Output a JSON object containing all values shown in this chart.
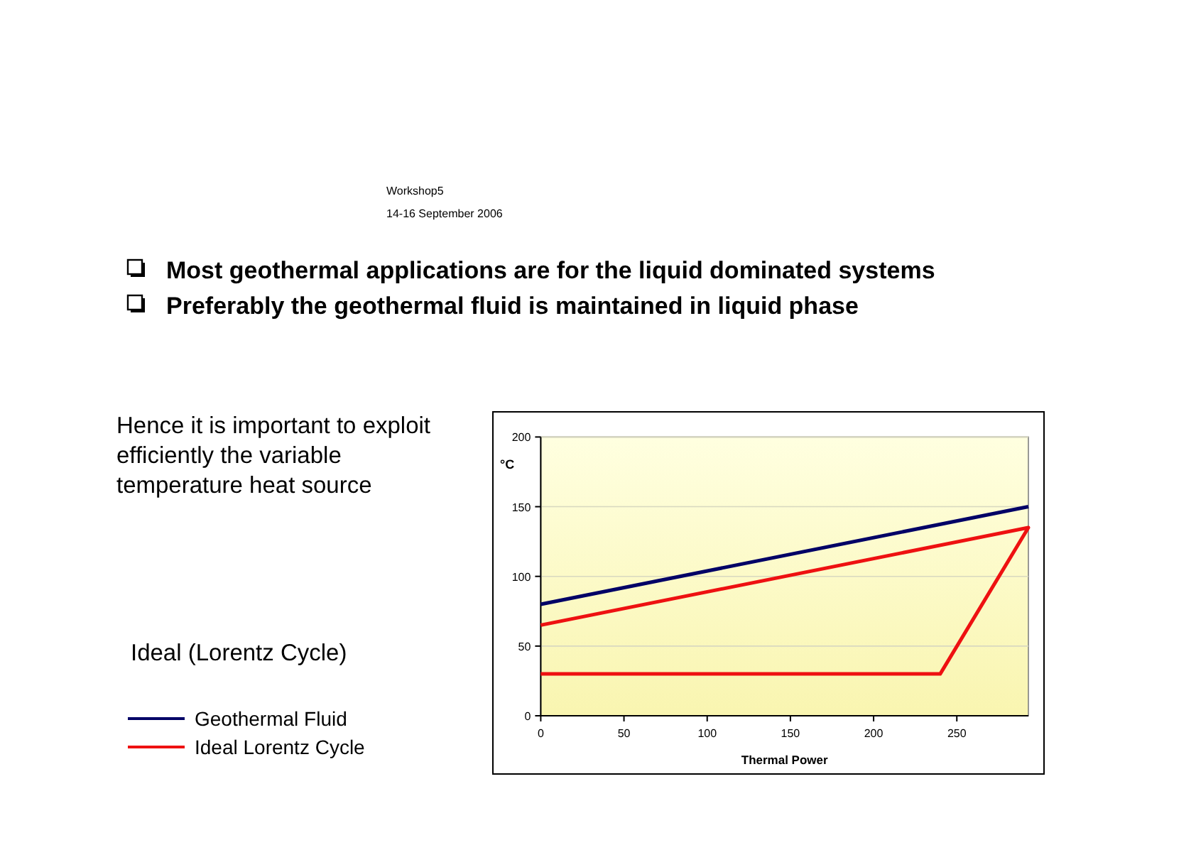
{
  "chart_data": {
    "type": "line",
    "title": "Most geothermal applications are for the liquid dominated systems",
    "subtitle": "Preferably the geothermal fluid is maintained in liquid phase",
    "annotations": [
      "Hence it is important to exploit efficiently the variable temperature heat source",
      "Workshop5",
      "14-16 September 2006"
    ],
    "xlabel": "Thermal Power",
    "ylabel": "°C",
    "legend_title": "Ideal (Lorentz Cycle)",
    "series": [
      {
        "name": "Geothermal Fluid",
        "color": "#000066",
        "x": [
          0,
          293
        ],
        "values": [
          80,
          150
        ]
      },
      {
        "name": "Ideal Lorentz Cycle",
        "color": "#ee1111",
        "x": [
          0,
          293,
          240,
          0
        ],
        "values": [
          65,
          135,
          30,
          30
        ]
      }
    ],
    "xlim": [
      0,
      293
    ],
    "xticks": [
      0,
      50,
      100,
      150,
      200,
      250
    ],
    "ylim": [
      0,
      200
    ],
    "yticks": [
      0,
      50,
      100,
      150,
      200
    ],
    "grid": "y",
    "legend": "left",
    "marker": "none",
    "line_style": "solid"
  }
}
